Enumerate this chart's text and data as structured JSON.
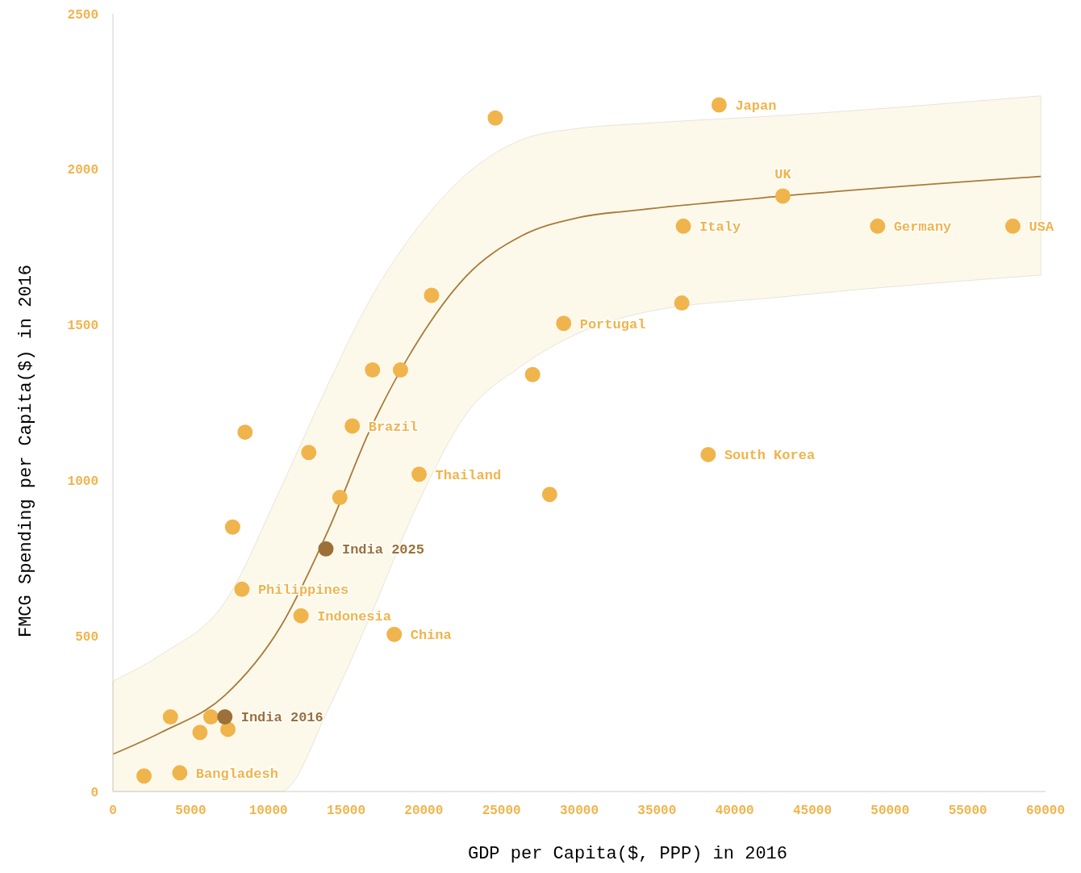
{
  "chart_data": {
    "type": "scatter",
    "xlabel": "GDP per Capita($, PPP) in 2016",
    "ylabel": "FMCG Spending per Capita($) in 2016",
    "xlim": [
      0,
      60000
    ],
    "ylim": [
      0,
      2500
    ],
    "xticks": [
      0,
      5000,
      10000,
      15000,
      20000,
      25000,
      30000,
      35000,
      40000,
      45000,
      50000,
      55000,
      60000
    ],
    "yticks": [
      0,
      500,
      1000,
      1500,
      2000,
      2500
    ],
    "grid": false,
    "marker": "circle",
    "series": [
      {
        "type": "line",
        "marker": "none",
        "color": "#a87a3a",
        "x": [
          0,
          3100,
          7200,
          10800,
          13900,
          16500,
          19600,
          22700,
          26300,
          29900,
          34000,
          43100,
          59700
        ],
        "values": [
          120,
          190,
          309,
          531,
          845,
          1158,
          1446,
          1655,
          1786,
          1844,
          1870,
          1914,
          1977
        ],
        "lower": [
          0,
          0,
          0,
          0,
          269,
          557,
          923,
          1211,
          1368,
          1472,
          1538,
          1590,
          1660
        ],
        "upper": [
          355,
          440,
          609,
          975,
          1315,
          1577,
          1812,
          1982,
          2095,
          2131,
          2147,
          2173,
          2236
        ]
      },
      {
        "x": [
          2000,
          4300,
          3700,
          5600,
          6300,
          7400,
          7200,
          7700,
          8300,
          8500,
          12100,
          12600,
          13700,
          14600,
          15400,
          16700,
          18100,
          18500,
          19700,
          20500,
          24600,
          27000,
          28100,
          29000,
          36600,
          36700,
          38300,
          39000,
          43100,
          49200,
          57900
        ],
        "values": [
          50,
          60,
          240,
          190,
          240,
          200,
          240,
          850,
          650,
          1155,
          565,
          1090,
          780,
          945,
          1175,
          1355,
          505,
          1355,
          1020,
          1595,
          2165,
          1340,
          955,
          1505,
          1570,
          1817,
          1083,
          2207,
          1914,
          1817,
          1817
        ],
        "colors": [
          "#f0b44c",
          "#f0b44c",
          "#f0b44c",
          "#f0b44c",
          "#f0b44c",
          "#f0b44c",
          "#9c7038",
          "#f0b44c",
          "#f0b44c",
          "#f0b44c",
          "#f0b44c",
          "#f0b44c",
          "#9c7038",
          "#f0b44c",
          "#f0b44c",
          "#f0b44c",
          "#f0b44c",
          "#f0b44c",
          "#f0b44c",
          "#f0b44c",
          "#f0b44c",
          "#f0b44c",
          "#f0b44c",
          "#f0b44c",
          "#f0b44c",
          "#f0b44c",
          "#f0b44c",
          "#f0b44c",
          "#f0b44c",
          "#f0b44c",
          "#f0b44c"
        ]
      }
    ],
    "annotations": [
      {
        "text": "Bangladesh",
        "x": 4300,
        "y": 60
      },
      {
        "text": "India 2016",
        "x": 7200,
        "y": 240
      },
      {
        "text": "Philippines",
        "x": 8300,
        "y": 650
      },
      {
        "text": "Indonesia",
        "x": 12100,
        "y": 565
      },
      {
        "text": "India 2025",
        "x": 13700,
        "y": 780
      },
      {
        "text": "Brazil",
        "x": 15400,
        "y": 1175
      },
      {
        "text": "China",
        "x": 18100,
        "y": 505
      },
      {
        "text": "Thailand",
        "x": 19700,
        "y": 1020
      },
      {
        "text": "Portugal",
        "x": 29000,
        "y": 1505
      },
      {
        "text": "Italy",
        "x": 36700,
        "y": 1817
      },
      {
        "text": "South Korea",
        "x": 38300,
        "y": 1083
      },
      {
        "text": "Japan",
        "x": 39000,
        "y": 2207
      },
      {
        "text": "UK",
        "x": 43100,
        "y": 1914
      },
      {
        "text": "Germany",
        "x": 49200,
        "y": 1817
      },
      {
        "text": "USA",
        "x": 57900,
        "y": 1817
      }
    ]
  }
}
